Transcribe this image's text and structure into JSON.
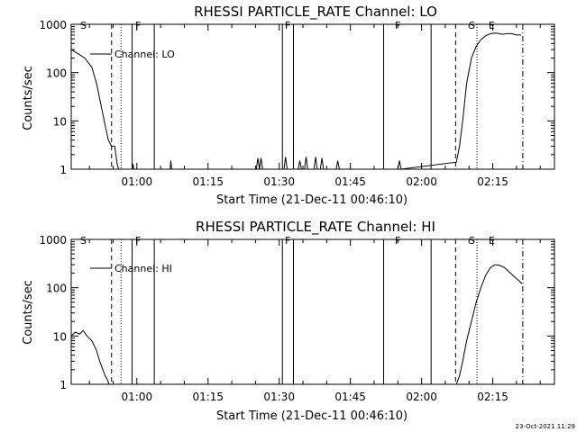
{
  "timestamp": "23-Oct-2021 11:29",
  "chart_data": [
    {
      "type": "line",
      "title": "RHESSI PARTICLE_RATE Channel: LO",
      "xlabel": "Start Time (21-Dec-11 00:46:10)",
      "ylabel": "Counts/sec",
      "yscale": "log",
      "ylim": [
        1,
        1000
      ],
      "xlim": [
        "00:46:10",
        "02:28:00"
      ],
      "xticks": [
        "01:00",
        "01:15",
        "01:30",
        "01:45",
        "02:00",
        "02:15"
      ],
      "yticks": [
        "1",
        "10",
        "100",
        "1000"
      ],
      "legend": {
        "label": "Channel: LO",
        "position": "top-left"
      },
      "markers": [
        {
          "label": "S",
          "time": "00:46:10",
          "style": "solid"
        },
        {
          "label": "",
          "time": "00:54:40",
          "style": "dashed"
        },
        {
          "label": "",
          "time": "00:56:40",
          "style": "dotted"
        },
        {
          "label": "F",
          "time": "00:59:00",
          "style": "solid"
        },
        {
          "label": "",
          "time": "01:03:40",
          "style": "solid"
        },
        {
          "label": "F",
          "time": "01:30:40",
          "style": "solid"
        },
        {
          "label": "",
          "time": "01:33:00",
          "style": "solid"
        },
        {
          "label": "F",
          "time": "01:52:00",
          "style": "solid"
        },
        {
          "label": "",
          "time": "02:02:00",
          "style": "solid"
        },
        {
          "label": "S",
          "time": "02:07:10",
          "style": "dashed"
        },
        {
          "label": "E",
          "time": "02:11:40",
          "style": "dotted"
        },
        {
          "label": "",
          "time": "02:21:20",
          "style": "dashdot"
        }
      ],
      "series": [
        {
          "x": [
            "00:46:10",
            "00:47:30",
            "00:49:00",
            "00:50:30",
            "00:51:30",
            "00:52:30",
            "00:53:20",
            "00:54:00",
            "00:54:40",
            "00:55:20",
            "00:55:50",
            "00:56:10",
            "00:59:00",
            "00:59:10",
            "00:59:20",
            "01:07:00",
            "01:07:10",
            "01:07:20",
            "01:25:10",
            "01:25:30",
            "01:25:50",
            "01:26:10",
            "01:26:30",
            "01:31:00",
            "01:31:20",
            "01:31:40",
            "01:34:00",
            "01:34:20",
            "01:34:40",
            "01:35:20",
            "01:35:40",
            "01:36:00",
            "01:37:20",
            "01:37:40",
            "01:38:00",
            "01:38:40",
            "01:39:00",
            "01:39:20",
            "01:42:00",
            "01:42:20",
            "01:42:40",
            "01:55:00",
            "01:55:20",
            "01:55:40",
            "02:07:20",
            "02:08:00",
            "02:08:40",
            "02:09:30",
            "02:10:30",
            "02:11:30",
            "02:12:30",
            "02:13:30",
            "02:14:30",
            "02:15:30",
            "02:16:00",
            "02:17:00",
            "02:18:00",
            "02:19:00",
            "02:20:00",
            "02:21:00"
          ],
          "y": [
            300,
            250,
            200,
            130,
            60,
            20,
            8,
            4,
            3,
            3,
            1.3,
            1,
            1,
            1.3,
            1,
            1,
            1.5,
            1,
            1,
            1.7,
            1,
            1.7,
            1,
            1,
            1.8,
            1,
            1,
            1.5,
            1,
            1,
            1.8,
            1,
            1,
            1.8,
            1,
            1,
            1.7,
            1,
            1,
            1.5,
            1,
            1,
            1.5,
            1,
            1.4,
            3,
            10,
            60,
            200,
            350,
            480,
            580,
            640,
            660,
            650,
            620,
            640,
            640,
            600,
            600
          ]
        }
      ]
    },
    {
      "type": "line",
      "title": "RHESSI PARTICLE_RATE Channel: HI",
      "xlabel": "Start Time (21-Dec-11 00:46:10)",
      "ylabel": "Counts/sec",
      "yscale": "log",
      "ylim": [
        1,
        1000
      ],
      "xlim": [
        "00:46:10",
        "02:28:00"
      ],
      "xticks": [
        "01:00",
        "01:15",
        "01:30",
        "01:45",
        "02:00",
        "02:15"
      ],
      "yticks": [
        "1",
        "10",
        "100",
        "1000"
      ],
      "legend": {
        "label": "Channel: HI",
        "position": "top-left"
      },
      "markers": [
        {
          "label": "S",
          "time": "00:46:10",
          "style": "solid"
        },
        {
          "label": "",
          "time": "00:54:40",
          "style": "dashed"
        },
        {
          "label": "",
          "time": "00:56:40",
          "style": "dotted"
        },
        {
          "label": "F",
          "time": "00:59:00",
          "style": "solid"
        },
        {
          "label": "",
          "time": "01:03:40",
          "style": "solid"
        },
        {
          "label": "F",
          "time": "01:30:40",
          "style": "solid"
        },
        {
          "label": "",
          "time": "01:33:00",
          "style": "solid"
        },
        {
          "label": "F",
          "time": "01:52:00",
          "style": "solid"
        },
        {
          "label": "",
          "time": "02:02:00",
          "style": "solid"
        },
        {
          "label": "S",
          "time": "02:07:10",
          "style": "dashed"
        },
        {
          "label": "E",
          "time": "02:11:40",
          "style": "dotted"
        },
        {
          "label": "",
          "time": "02:21:20",
          "style": "dashdot"
        }
      ],
      "series": [
        {
          "x": [
            "00:46:10",
            "00:47:00",
            "00:48:00",
            "00:48:40",
            "00:49:30",
            "00:50:30",
            "00:51:30",
            "00:52:10",
            "00:52:50",
            "00:53:20",
            "00:53:50",
            "00:54:10",
            "02:07:20",
            "02:08:00",
            "02:08:40",
            "02:09:30",
            "02:10:30",
            "02:11:30",
            "02:12:30",
            "02:13:30",
            "02:14:30",
            "02:15:30",
            "02:16:30",
            "02:17:30",
            "02:18:30",
            "02:19:30",
            "02:20:30",
            "02:21:10"
          ],
          "y": [
            10,
            12,
            11,
            13,
            10,
            8,
            5,
            3,
            2,
            1.5,
            1.2,
            1,
            1,
            1.5,
            3,
            8,
            20,
            50,
            100,
            180,
            260,
            300,
            290,
            260,
            210,
            170,
            140,
            120
          ]
        }
      ]
    }
  ]
}
